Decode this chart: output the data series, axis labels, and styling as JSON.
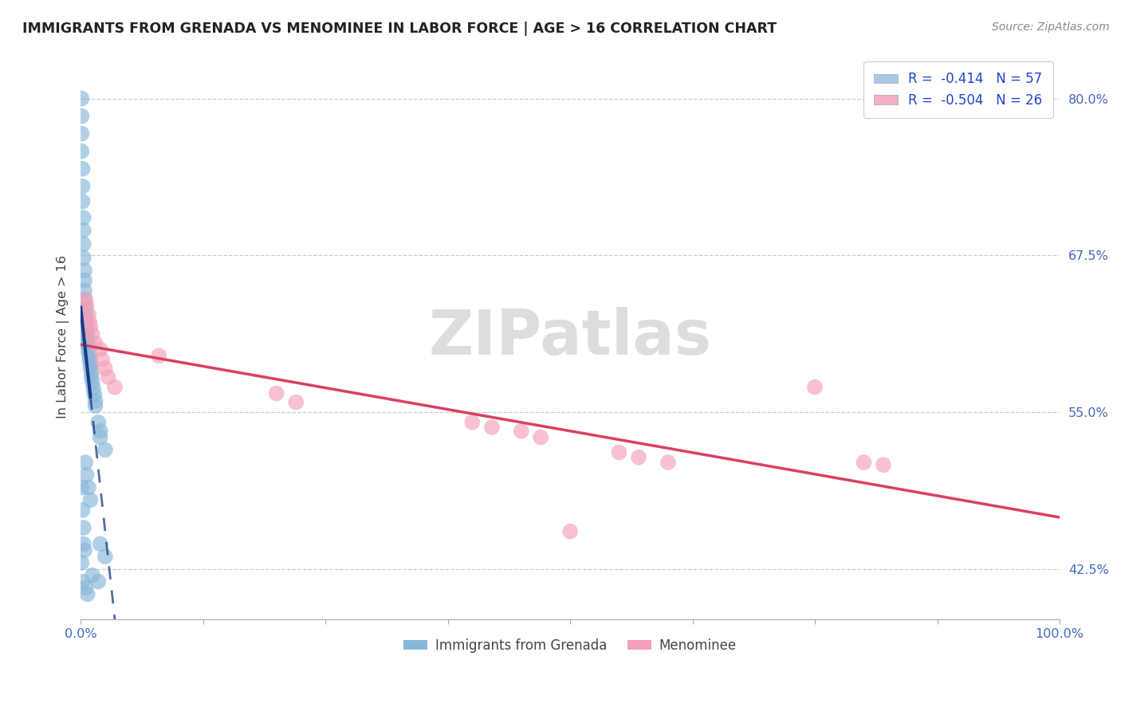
{
  "title": "IMMIGRANTS FROM GRENADA VS MENOMINEE IN LABOR FORCE | AGE > 16 CORRELATION CHART",
  "source_text": "Source: ZipAtlas.com",
  "ylabel": "In Labor Force | Age > 16",
  "xlim": [
    0.0,
    1.0
  ],
  "ylim": [
    0.385,
    0.835
  ],
  "yticks": [
    0.425,
    0.55,
    0.675,
    0.8
  ],
  "yticklabels": [
    "42.5%",
    "55.0%",
    "67.5%",
    "80.0%"
  ],
  "xtick_positions": [
    0.0,
    0.125,
    0.25,
    0.375,
    0.5,
    0.625,
    0.75,
    0.875,
    1.0
  ],
  "xlabel_show": [
    "0.0%",
    "100.0%"
  ],
  "legend_entries": [
    {
      "label": "R =  -0.414   N = 57",
      "facecolor": "#a8c8e8"
    },
    {
      "label": "R =  -0.504   N = 26",
      "facecolor": "#f4b0c0"
    }
  ],
  "legend_bottom": [
    "Immigrants from Grenada",
    "Menominee"
  ],
  "grenada_color": "#88b8d8",
  "menominee_color": "#f4a0b8",
  "grenada_line_color": "#1a3a8a",
  "menominee_line_color": "#d84060",
  "watermark": "ZIPatlas",
  "grenada_points": [
    [
      0.001,
      0.8
    ],
    [
      0.001,
      0.786
    ],
    [
      0.001,
      0.772
    ],
    [
      0.001,
      0.758
    ],
    [
      0.002,
      0.744
    ],
    [
      0.002,
      0.73
    ],
    [
      0.002,
      0.718
    ],
    [
      0.003,
      0.705
    ],
    [
      0.003,
      0.695
    ],
    [
      0.003,
      0.684
    ],
    [
      0.003,
      0.673
    ],
    [
      0.004,
      0.663
    ],
    [
      0.004,
      0.655
    ],
    [
      0.004,
      0.647
    ],
    [
      0.004,
      0.64
    ],
    [
      0.005,
      0.633
    ],
    [
      0.005,
      0.628
    ],
    [
      0.005,
      0.623
    ],
    [
      0.006,
      0.618
    ],
    [
      0.006,
      0.614
    ],
    [
      0.007,
      0.61
    ],
    [
      0.007,
      0.607
    ],
    [
      0.007,
      0.604
    ],
    [
      0.008,
      0.601
    ],
    [
      0.008,
      0.598
    ],
    [
      0.009,
      0.595
    ],
    [
      0.009,
      0.592
    ],
    [
      0.01,
      0.589
    ],
    [
      0.01,
      0.586
    ],
    [
      0.011,
      0.582
    ],
    [
      0.011,
      0.578
    ],
    [
      0.012,
      0.574
    ],
    [
      0.013,
      0.569
    ],
    [
      0.014,
      0.564
    ],
    [
      0.015,
      0.559
    ],
    [
      0.015,
      0.555
    ],
    [
      0.018,
      0.542
    ],
    [
      0.02,
      0.535
    ],
    [
      0.02,
      0.53
    ],
    [
      0.025,
      0.52
    ],
    [
      0.001,
      0.49
    ],
    [
      0.002,
      0.472
    ],
    [
      0.003,
      0.458
    ],
    [
      0.005,
      0.51
    ],
    [
      0.006,
      0.5
    ],
    [
      0.008,
      0.49
    ],
    [
      0.01,
      0.48
    ],
    [
      0.003,
      0.445
    ],
    [
      0.004,
      0.44
    ],
    [
      0.001,
      0.43
    ],
    [
      0.02,
      0.445
    ],
    [
      0.025,
      0.435
    ],
    [
      0.002,
      0.415
    ],
    [
      0.005,
      0.41
    ],
    [
      0.007,
      0.405
    ],
    [
      0.012,
      0.42
    ],
    [
      0.018,
      0.415
    ]
  ],
  "menominee_points": [
    [
      0.005,
      0.64
    ],
    [
      0.006,
      0.635
    ],
    [
      0.008,
      0.628
    ],
    [
      0.009,
      0.622
    ],
    [
      0.01,
      0.618
    ],
    [
      0.012,
      0.612
    ],
    [
      0.015,
      0.605
    ],
    [
      0.02,
      0.6
    ],
    [
      0.022,
      0.592
    ],
    [
      0.025,
      0.585
    ],
    [
      0.028,
      0.578
    ],
    [
      0.035,
      0.57
    ],
    [
      0.08,
      0.595
    ],
    [
      0.2,
      0.565
    ],
    [
      0.22,
      0.558
    ],
    [
      0.4,
      0.542
    ],
    [
      0.42,
      0.538
    ],
    [
      0.45,
      0.535
    ],
    [
      0.47,
      0.53
    ],
    [
      0.55,
      0.518
    ],
    [
      0.57,
      0.514
    ],
    [
      0.6,
      0.51
    ],
    [
      0.75,
      0.57
    ],
    [
      0.8,
      0.51
    ],
    [
      0.82,
      0.508
    ],
    [
      0.5,
      0.455
    ]
  ],
  "grenada_line": {
    "x0": 0.0,
    "x1": 0.008,
    "style": "solid",
    "x2": 0.5,
    "style2": "dashed"
  },
  "menominee_line": {
    "x0": 0.0,
    "x1": 1.0
  }
}
